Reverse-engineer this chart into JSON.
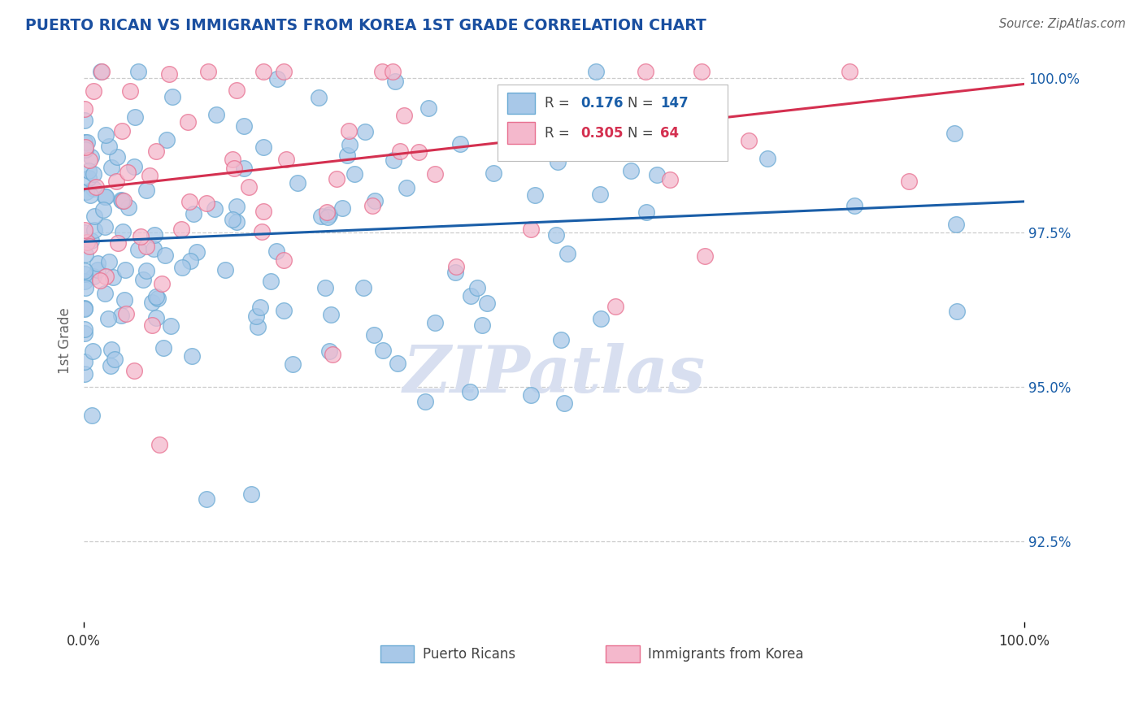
{
  "title": "PUERTO RICAN VS IMMIGRANTS FROM KOREA 1ST GRADE CORRELATION CHART",
  "source": "Source: ZipAtlas.com",
  "ylabel": "1st Grade",
  "legend_blue_r": "0.176",
  "legend_blue_n": "147",
  "legend_pink_r": "0.305",
  "legend_pink_n": "64",
  "legend_label_blue": "Puerto Ricans",
  "legend_label_pink": "Immigrants from Korea",
  "right_ytick_labels": [
    "100.0%",
    "97.5%",
    "95.0%",
    "92.5%"
  ],
  "right_ytick_values": [
    1.0,
    0.975,
    0.95,
    0.925
  ],
  "xlim": [
    0.0,
    1.0
  ],
  "ylim": [
    0.912,
    1.003
  ],
  "blue_color": "#a8c8e8",
  "blue_edge_color": "#6aaad4",
  "pink_color": "#f4b8cc",
  "pink_edge_color": "#e87090",
  "blue_line_color": "#1a5ea8",
  "pink_line_color": "#d43050",
  "watermark_color": "#d8dff0",
  "title_color": "#1a4fa0",
  "source_color": "#666666",
  "legend_text_color": "#444444",
  "background_color": "#ffffff",
  "grid_color": "#cccccc",
  "blue_line_y_start": 0.9735,
  "blue_line_y_end": 0.98,
  "pink_line_y_start": 0.982,
  "pink_line_y_end": 0.999
}
